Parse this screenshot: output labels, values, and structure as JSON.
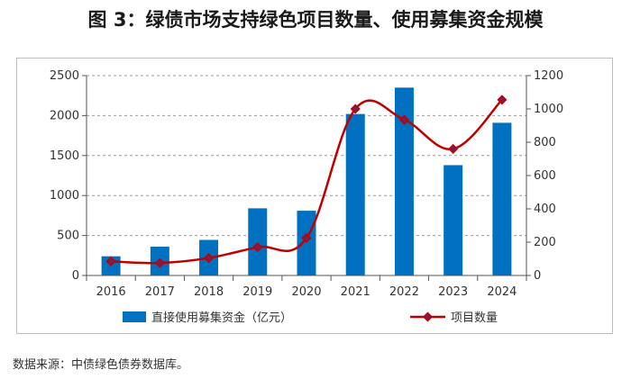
{
  "title": "图 3：绿债市场支持绿色项目数量、使用募集资金规模",
  "source": "数据来源：中债绿色债券数据库。",
  "colors": {
    "bar": "#0070c0",
    "line": "#c00000",
    "marker": "#7a1f4d",
    "grid": "#999999"
  },
  "chart_data": {
    "type": "bar+line",
    "categories": [
      "2016",
      "2017",
      "2018",
      "2019",
      "2020",
      "2021",
      "2022",
      "2023",
      "2024"
    ],
    "series": [
      {
        "name": "直接使用募集资金（亿元）",
        "type": "bar",
        "axis": "left",
        "values": [
          240,
          360,
          445,
          840,
          810,
          2020,
          2350,
          1380,
          1910
        ]
      },
      {
        "name": "项目数量",
        "type": "line",
        "axis": "right",
        "values": [
          85,
          75,
          105,
          170,
          225,
          1000,
          935,
          760,
          1055
        ]
      }
    ],
    "y_left": {
      "min": 0,
      "max": 2500,
      "ticks": [
        "0",
        "500",
        "1000",
        "1500",
        "2000",
        "2500"
      ]
    },
    "y_right": {
      "min": 0,
      "max": 1200,
      "ticks": [
        "0",
        "200",
        "400",
        "600",
        "800",
        "1000",
        "1200"
      ]
    },
    "grid": true,
    "legend": {
      "position": "bottom",
      "items": [
        "直接使用募集资金（亿元）",
        "项目数量"
      ]
    }
  }
}
